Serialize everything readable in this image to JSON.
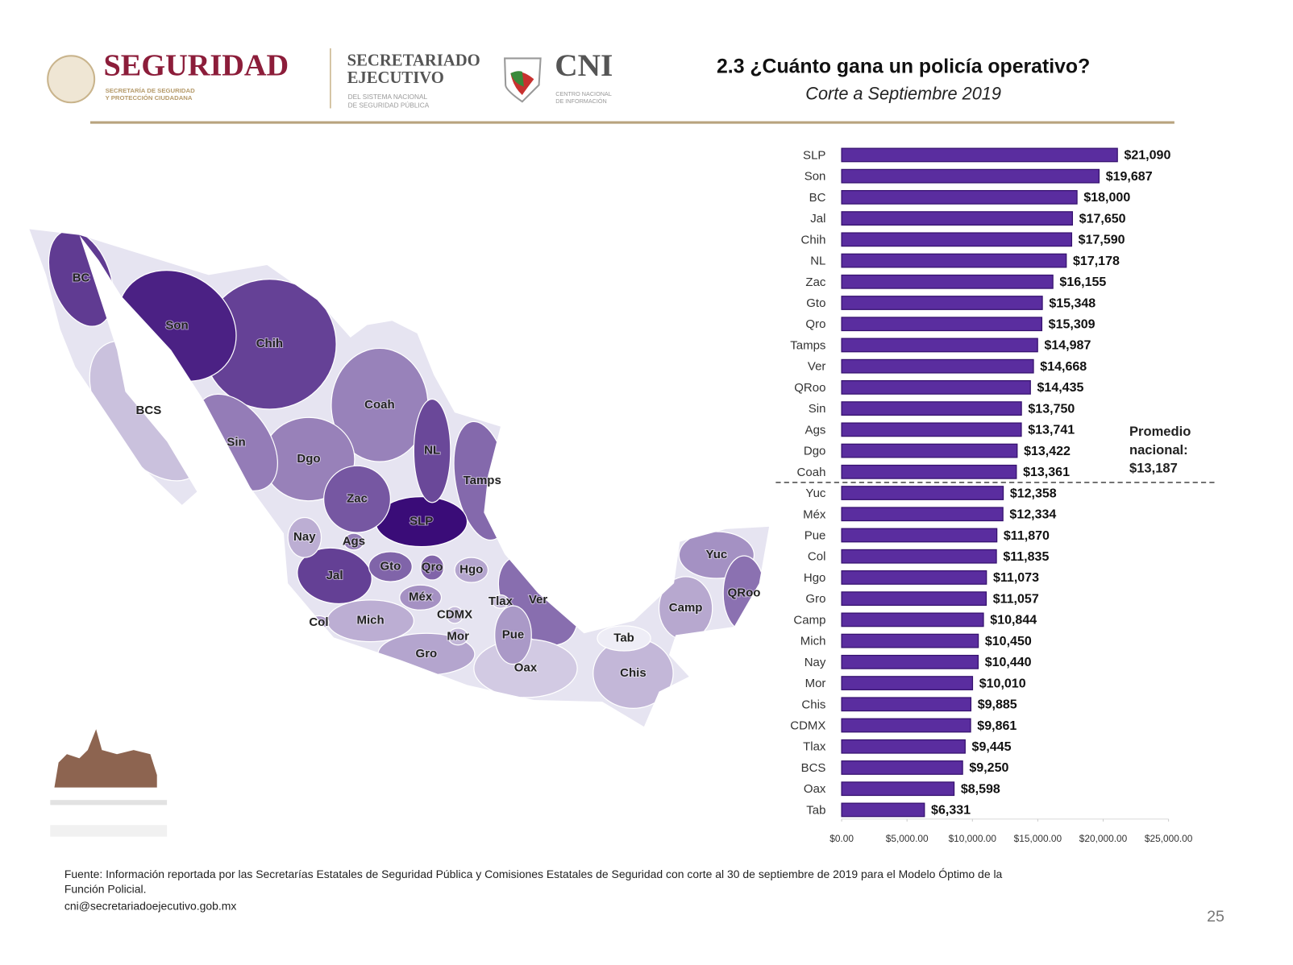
{
  "header": {
    "logo_main": "SEGURIDAD",
    "logo_main_sub": [
      "SECRETARÍA DE SEGURIDAD",
      "Y PROTECCIÓN CIUDADANA"
    ],
    "logo_se": [
      "SECRETARIADO",
      "EJECUTIVO"
    ],
    "logo_se_sub": [
      "DEL SISTEMA NACIONAL",
      "DE SEGURIDAD PÚBLICA"
    ],
    "logo_cni": "CNI",
    "logo_cni_sub": [
      "CENTRO NACIONAL",
      "DE INFORMACIÓN"
    ]
  },
  "chart_data": {
    "type": "bar",
    "orientation": "horizontal",
    "title": "2.3 ¿Cuánto gana un policía operativo?",
    "subtitle": "Corte a Septiembre 2019",
    "categories": [
      "SLP",
      "Son",
      "BC",
      "Jal",
      "Chih",
      "NL",
      "Zac",
      "Gto",
      "Qro",
      "Tamps",
      "Ver",
      "QRoo",
      "Sin",
      "Ags",
      "Dgo",
      "Coah",
      "Yuc",
      "Méx",
      "Pue",
      "Col",
      "Hgo",
      "Gro",
      "Camp",
      "Mich",
      "Nay",
      "Mor",
      "Chis",
      "CDMX",
      "Tlax",
      "BCS",
      "Oax",
      "Tab"
    ],
    "values": [
      21090,
      19687,
      18000,
      17650,
      17590,
      17178,
      16155,
      15348,
      15309,
      14987,
      14668,
      14435,
      13750,
      13741,
      13422,
      13361,
      12358,
      12334,
      11870,
      11835,
      11073,
      11057,
      10844,
      10450,
      10440,
      10010,
      9885,
      9861,
      9445,
      9250,
      8598,
      6331
    ],
    "value_labels": [
      "$21,090",
      "$19,687",
      "$18,000",
      "$17,650",
      "$17,590",
      "$17,178",
      "$16,155",
      "$15,348",
      "$15,309",
      "$14,987",
      "$14,668",
      "$14,435",
      "$13,750",
      "$13,741",
      "$13,422",
      "$13,361",
      "$12,358",
      "$12,334",
      "$11,870",
      "$11,835",
      "$11,073",
      "$11,057",
      "$10,844",
      "$10,450",
      "$10,440",
      "$10,010",
      "$9,885",
      "$9,861",
      "$9,445",
      "$9,250",
      "$8,598",
      "$6,331"
    ],
    "color": "#5a2d9f",
    "map_color_range": [
      "#eeedf6",
      "#3a0c78"
    ],
    "xlim": [
      0,
      25000
    ],
    "xticks": [
      {
        "value": 0,
        "label": "$0.00"
      },
      {
        "value": 5000,
        "label": "$5,000.00"
      },
      {
        "value": 10000,
        "label": "$10,000.00"
      },
      {
        "value": 15000,
        "label": "$15,000.00"
      },
      {
        "value": 20000,
        "label": "$20,000.00"
      },
      {
        "value": 25000,
        "label": "$25,000.00"
      }
    ],
    "average": {
      "value": 13187,
      "label": [
        "Promedio",
        "nacional:",
        "$13,187"
      ]
    }
  },
  "footer": {
    "source_lines": [
      "Fuente: Información reportada por las Secretarías Estatales de Seguridad Pública y Comisiones Estatales de Seguridad con corte al 30 de septiembre de 2019 para el Modelo Óptimo de la",
      "Función Policial."
    ],
    "email": "cni@secretariadoejecutivo.gob.mx",
    "page_number": "25"
  }
}
